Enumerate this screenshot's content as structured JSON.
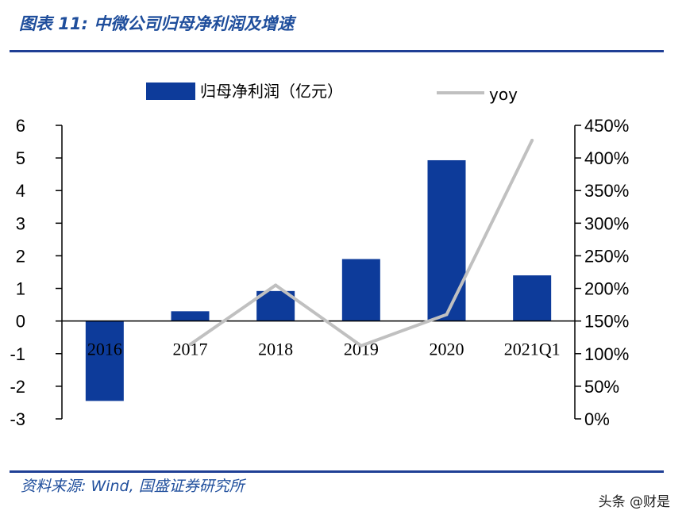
{
  "header": {
    "title": "图表 11:  中微公司归母净利润及增速"
  },
  "footer": {
    "source": "资料来源: Wind, 国盛证券研究所",
    "watermark": "头条 @财是"
  },
  "chart_data": {
    "type": "bar",
    "categories": [
      "2016",
      "2017",
      "2018",
      "2019",
      "2020",
      "2021Q1"
    ],
    "series": [
      {
        "name": "归母净利润（亿元）",
        "type": "bar",
        "axis": "left",
        "color": "#0d3b9a",
        "values": [
          -2.45,
          0.3,
          0.92,
          1.9,
          4.93,
          1.4
        ]
      },
      {
        "name": "yoy",
        "type": "line",
        "axis": "right",
        "color": "#c0c0c0",
        "values": [
          null,
          1.14,
          2.05,
          1.12,
          1.6,
          4.27
        ]
      }
    ],
    "ylim": [
      -3,
      6
    ],
    "y_ticks": [
      "6",
      "5",
      "4",
      "3",
      "2",
      "1",
      "0",
      "-1",
      "-2",
      "-3"
    ],
    "y2lim": [
      0,
      4.5
    ],
    "y2_ticks": [
      "450%",
      "400%",
      "350%",
      "300%",
      "250%",
      "200%",
      "150%",
      "100%",
      "50%",
      "0%"
    ],
    "legend": {
      "placement": "top"
    },
    "grid": false
  }
}
